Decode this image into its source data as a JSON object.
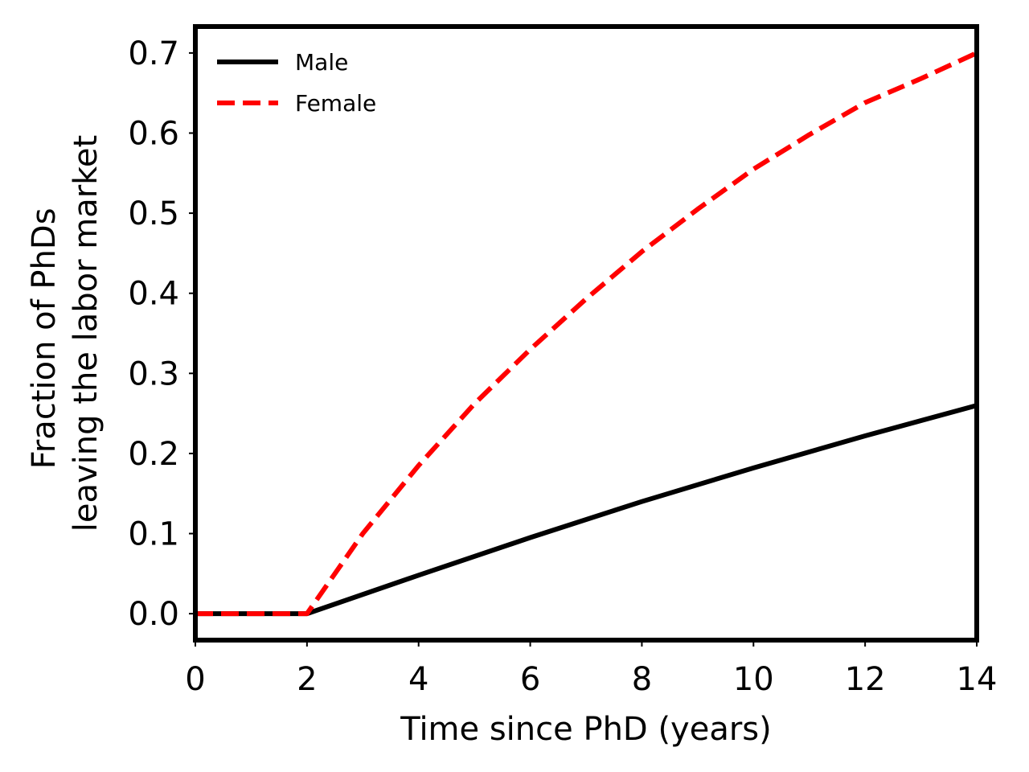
{
  "chart_data": {
    "type": "line",
    "title": "",
    "xlabel": "Time since PhD (years)",
    "ylabel_lines": [
      "Fraction of PhDs",
      "leaving the labor market"
    ],
    "xlim": [
      0,
      14
    ],
    "ylim": [
      -0.033,
      0.733
    ],
    "xticks": [
      0,
      2,
      4,
      6,
      8,
      10,
      12,
      14
    ],
    "yticks": [
      "0.0",
      "0.1",
      "0.2",
      "0.3",
      "0.4",
      "0.5",
      "0.6",
      "0.7"
    ],
    "grid": false,
    "legend_position": "top-left",
    "series": [
      {
        "name": "Male",
        "color": "#000000",
        "style": "solid",
        "x": [
          0,
          2,
          4,
          6,
          8,
          10,
          12,
          14
        ],
        "y": [
          0.0,
          0.0,
          0.048,
          0.095,
          0.14,
          0.182,
          0.222,
          0.26
        ]
      },
      {
        "name": "Female",
        "color": "#ff0000",
        "style": "dashed",
        "x": [
          0,
          2,
          3,
          4,
          5,
          6,
          7,
          8,
          9,
          10,
          11,
          12,
          13,
          14
        ],
        "y": [
          0.0,
          0.0,
          0.1,
          0.185,
          0.262,
          0.33,
          0.393,
          0.452,
          0.505,
          0.555,
          0.598,
          0.638,
          0.668,
          0.7
        ]
      }
    ]
  }
}
